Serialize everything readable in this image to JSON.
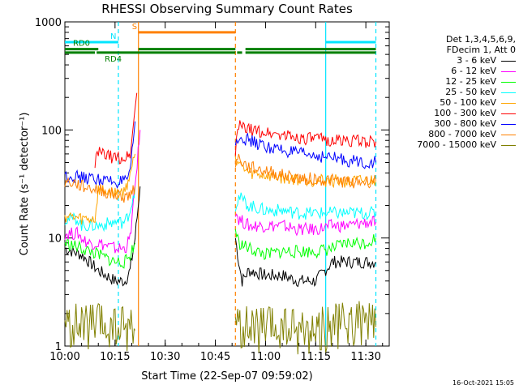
{
  "chart_data": {
    "type": "line",
    "title": "RHESSI Observing Summary Count Rates",
    "xlabel": "Start Time (22-Sep-07 09:59:02)",
    "ylabel": "Count Rate (s⁻¹ detector⁻¹)",
    "x_ticks": [
      "10:00",
      "10:15",
      "10:30",
      "10:45",
      "11:00",
      "11:15",
      "11:30"
    ],
    "x_tick_minutes": [
      0,
      15,
      30,
      45,
      60,
      75,
      90
    ],
    "xlim_minutes": [
      0,
      97
    ],
    "yscale": "log",
    "ylim": [
      1,
      1000
    ],
    "y_ticks": [
      "1",
      "10",
      "100",
      "1000"
    ],
    "y_tick_values": [
      1,
      10,
      100,
      1000
    ],
    "legend_header": [
      "Det 1,3,4,5,6,9,",
      "FDecim 1, Att 0"
    ],
    "series": [
      {
        "name": "3 - 6 keV",
        "color": "#000000",
        "x": [
          0,
          5,
          10,
          15,
          18,
          19.5,
          21,
          22.5,
          51,
          52,
          53,
          55,
          60,
          65,
          70,
          75,
          80,
          85,
          90,
          93
        ],
        "y": [
          8,
          7,
          5,
          4,
          4,
          5,
          10,
          30,
          10,
          6,
          4,
          5,
          4.5,
          4.5,
          4,
          4,
          6,
          6,
          6,
          6
        ]
      },
      {
        "name": "6 - 12 keV",
        "color": "#ff00ff",
        "x": [
          0,
          4,
          5,
          7,
          10,
          15,
          18,
          19.5,
          21,
          22.5,
          51,
          52,
          55,
          60,
          65,
          70,
          75,
          80,
          85,
          90,
          93
        ],
        "y": [
          11,
          11,
          10,
          9,
          9,
          8,
          8,
          10,
          30,
          100,
          18,
          15,
          13,
          13,
          13,
          12,
          12,
          13,
          13,
          14,
          14
        ]
      },
      {
        "name": "12 - 25 keV",
        "color": "#00ff00",
        "x": [
          0,
          5,
          10,
          15,
          18,
          19.5,
          21,
          51,
          52,
          55,
          60,
          65,
          70,
          75,
          80,
          85,
          90,
          93
        ],
        "y": [
          9,
          8,
          7,
          6,
          6,
          7,
          9,
          12,
          9,
          8,
          7,
          7.5,
          7.5,
          7.5,
          8,
          9,
          9,
          10
        ]
      },
      {
        "name": "25 - 50 keV",
        "color": "#00ffff",
        "x": [
          0,
          4,
          5,
          10,
          15,
          18,
          19.5,
          21,
          51,
          52,
          55,
          60,
          65,
          70,
          75,
          80,
          85,
          90,
          93
        ],
        "y": [
          15,
          15,
          13,
          13,
          14,
          14,
          18,
          30,
          20,
          24,
          20,
          18,
          18,
          17,
          17,
          17,
          17,
          17,
          17
        ]
      },
      {
        "name": "50 - 100 keV",
        "color": "#ffa500",
        "x": [
          0,
          5,
          9,
          10,
          15,
          18,
          19.5,
          21,
          51,
          52,
          53,
          55,
          60,
          65,
          70,
          75,
          80,
          85,
          90,
          93
        ],
        "y": [
          16,
          15,
          15,
          28,
          26,
          27,
          40,
          60,
          55,
          50,
          45,
          40,
          38,
          36,
          35,
          34,
          34,
          33,
          34,
          34
        ]
      },
      {
        "name": "100 - 300 keV",
        "color": "#ff0000",
        "x": [
          9,
          10,
          13,
          15,
          18,
          19.5,
          20.5,
          21.5,
          51,
          52,
          53,
          55,
          60,
          65,
          70,
          75,
          80,
          85,
          90,
          93
        ],
        "y": [
          50,
          62,
          57,
          55,
          55,
          60,
          110,
          220,
          65,
          110,
          105,
          100,
          95,
          90,
          85,
          82,
          80,
          80,
          78,
          78
        ]
      },
      {
        "name": "300 - 800 keV",
        "color": "#0000ff",
        "x": [
          0,
          3,
          5,
          10,
          15,
          18,
          19.5,
          21,
          51,
          52,
          53,
          55,
          60,
          65,
          70,
          75,
          80,
          85,
          90,
          93
        ],
        "y": [
          38,
          37,
          36,
          35,
          33,
          33,
          38,
          120,
          70,
          90,
          85,
          80,
          70,
          65,
          60,
          58,
          55,
          52,
          50,
          50
        ]
      },
      {
        "name": "800 - 7000 keV",
        "color": "#ff8000",
        "x": [
          0,
          3,
          5,
          10,
          15,
          18,
          19.5,
          21,
          51,
          52,
          53,
          55,
          60,
          65,
          70,
          75,
          80,
          85,
          90,
          93
        ],
        "y": [
          33,
          32,
          30,
          28,
          25,
          24,
          25,
          30,
          50,
          55,
          50,
          45,
          42,
          38,
          36,
          35,
          34,
          33,
          33,
          34
        ]
      },
      {
        "name": "7000 - 15000 keV",
        "color": "#808000",
        "x": [
          0,
          5,
          10,
          15,
          18,
          19.5,
          21,
          51,
          52,
          55,
          60,
          65,
          70,
          75,
          80,
          85,
          90,
          93
        ],
        "y": [
          1.5,
          1.5,
          1.5,
          1.4,
          1.5,
          1.5,
          1.4,
          1.6,
          1.5,
          1.4,
          1.4,
          1.4,
          1.4,
          1.4,
          1.5,
          1.6,
          1.6,
          1.5
        ]
      }
    ],
    "flag_bars": [
      {
        "label": "N",
        "color": "#00e5ff",
        "segments": [
          [
            0,
            16
          ],
          [
            78,
            93
          ]
        ],
        "level": 650
      },
      {
        "label": "S",
        "color": "#ff8000",
        "segments": [
          [
            22,
            51
          ]
        ],
        "level": 800
      },
      {
        "label": "RD0",
        "color": "#008000",
        "segments": [
          [
            0,
            10
          ],
          [
            22,
            51
          ],
          [
            54,
            93
          ]
        ],
        "level": 560
      },
      {
        "label": "RD4",
        "color": "#008000",
        "segments": [
          [
            0,
            9
          ],
          [
            9.5,
            51
          ],
          [
            51.5,
            53
          ],
          [
            54,
            93
          ]
        ],
        "level": 520
      }
    ],
    "vertical_lines": [
      {
        "minute": 16,
        "color": "#00e5ff",
        "style": "dashed"
      },
      {
        "minute": 22,
        "color": "#ff8000",
        "style": "solid"
      },
      {
        "minute": 51,
        "color": "#ff8000",
        "style": "dashed"
      },
      {
        "minute": 78,
        "color": "#00e5ff",
        "style": "solid"
      },
      {
        "minute": 93,
        "color": "#00e5ff",
        "style": "dashed"
      }
    ]
  },
  "footer": {
    "date_stamp": "16-Oct-2021 15:05"
  }
}
